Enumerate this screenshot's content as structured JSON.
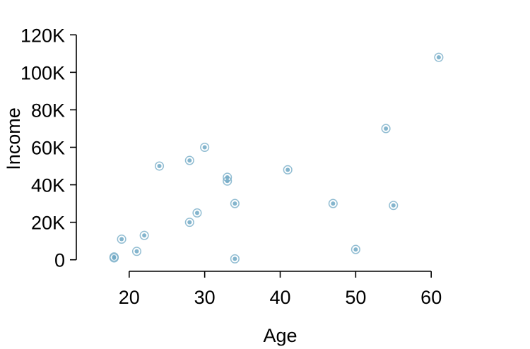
{
  "chart_data": {
    "type": "scatter",
    "xlabel": "Age",
    "ylabel": "Income",
    "xlim": [
      13,
      67
    ],
    "ylim": [
      -2000,
      122000
    ],
    "x_ticks": [
      20,
      30,
      40,
      50,
      60
    ],
    "y_ticks": [
      {
        "value": 0,
        "label": "0"
      },
      {
        "value": 20000,
        "label": "20K"
      },
      {
        "value": 40000,
        "label": "40K"
      },
      {
        "value": 60000,
        "label": "60K"
      },
      {
        "value": 80000,
        "label": "80K"
      },
      {
        "value": 100000,
        "label": "100K"
      },
      {
        "value": 120000,
        "label": "120K"
      }
    ],
    "grid": false,
    "point_color": "#6fa8c4",
    "points": [
      {
        "x": 18,
        "y": 1000
      },
      {
        "x": 18,
        "y": 1500
      },
      {
        "x": 19,
        "y": 11000
      },
      {
        "x": 21,
        "y": 4500
      },
      {
        "x": 22,
        "y": 13000
      },
      {
        "x": 24,
        "y": 50000
      },
      {
        "x": 28,
        "y": 53000
      },
      {
        "x": 28,
        "y": 20000
      },
      {
        "x": 29,
        "y": 25000
      },
      {
        "x": 30,
        "y": 60000
      },
      {
        "x": 33,
        "y": 44000
      },
      {
        "x": 33,
        "y": 42000
      },
      {
        "x": 34,
        "y": 30000
      },
      {
        "x": 34,
        "y": 500
      },
      {
        "x": 41,
        "y": 48000
      },
      {
        "x": 47,
        "y": 30000
      },
      {
        "x": 50,
        "y": 5500
      },
      {
        "x": 54,
        "y": 70000
      },
      {
        "x": 55,
        "y": 29000
      },
      {
        "x": 61,
        "y": 108000
      }
    ]
  }
}
